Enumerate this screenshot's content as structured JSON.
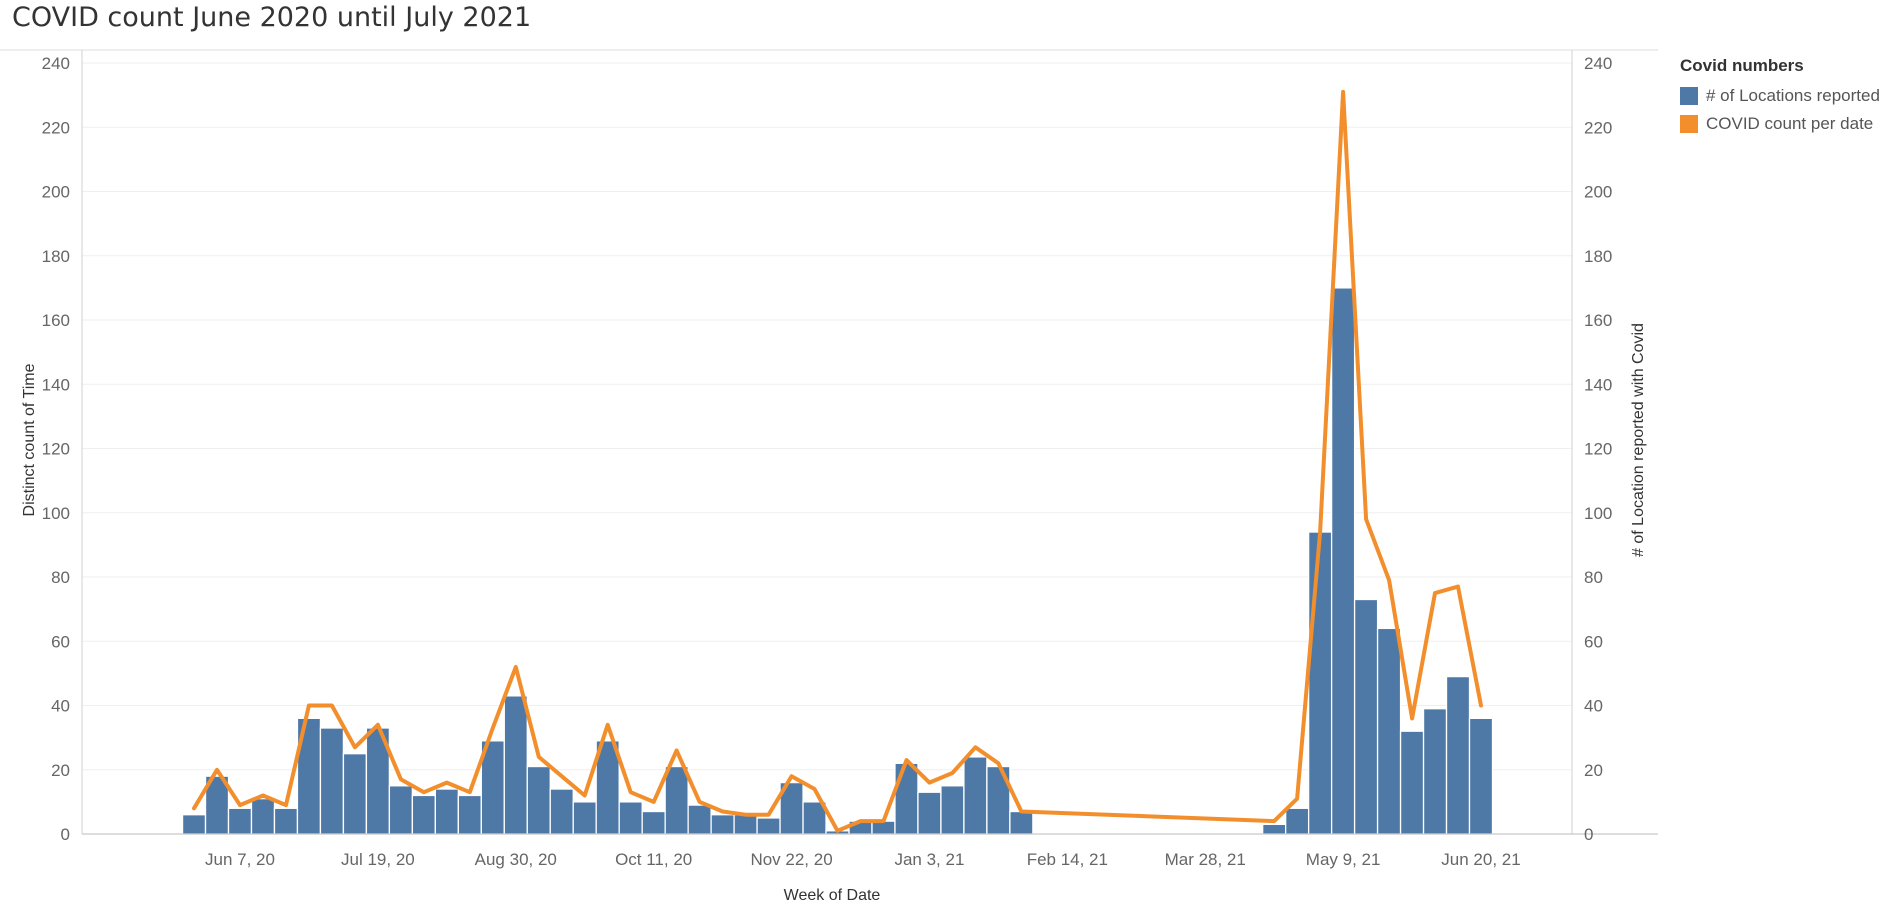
{
  "chart_data": {
    "type": "bar",
    "title": "COVID count June 2020 until July 2021",
    "xlabel": "Week of Date",
    "ylabel_left": "Distinct count of Time",
    "ylabel_right": "# of Location reported with Covid",
    "ylim": [
      0,
      240
    ],
    "yticks": [
      0,
      20,
      40,
      60,
      80,
      100,
      120,
      140,
      160,
      180,
      200,
      220,
      240
    ],
    "x_tick_labels": [
      "Jun 7, 20",
      "Jul 19, 20",
      "Aug 30, 20",
      "Oct 11, 20",
      "Nov 22, 20",
      "Jan 3, 21",
      "Feb 14, 21",
      "Mar 28, 21",
      "May 9, 21",
      "Jun 20, 21"
    ],
    "x_dates": [
      "2020-05-24",
      "2020-05-31",
      "2020-06-07",
      "2020-06-14",
      "2020-06-21",
      "2020-06-28",
      "2020-07-05",
      "2020-07-12",
      "2020-07-19",
      "2020-07-26",
      "2020-08-02",
      "2020-08-09",
      "2020-08-16",
      "2020-08-23",
      "2020-08-30",
      "2020-09-06",
      "2020-09-13",
      "2020-09-20",
      "2020-09-27",
      "2020-10-04",
      "2020-10-11",
      "2020-10-18",
      "2020-10-25",
      "2020-11-01",
      "2020-11-08",
      "2020-11-15",
      "2020-11-22",
      "2020-11-29",
      "2020-12-06",
      "2020-12-13",
      "2020-12-20",
      "2020-12-27",
      "2021-01-03",
      "2021-01-10",
      "2021-01-17",
      "2021-01-24",
      "2021-01-31",
      "2021-04-18",
      "2021-04-25",
      "2021-05-02",
      "2021-05-09",
      "2021-05-16",
      "2021-05-23",
      "2021-05-30",
      "2021-06-06",
      "2021-06-13",
      "2021-06-20"
    ],
    "legend": {
      "title": "Covid numbers",
      "position": "top-right"
    },
    "series": [
      {
        "name": "# of Locations reported",
        "type": "bar",
        "axis": "left",
        "color": "#4e79a7",
        "values": [
          6,
          18,
          8,
          11,
          8,
          36,
          33,
          25,
          33,
          15,
          12,
          14,
          12,
          29,
          43,
          21,
          14,
          10,
          29,
          10,
          7,
          21,
          9,
          6,
          6,
          5,
          16,
          10,
          1,
          4,
          4,
          22,
          13,
          15,
          24,
          21,
          7,
          3,
          8,
          94,
          170,
          73,
          64,
          32,
          39,
          49,
          36
        ]
      },
      {
        "name": "COVID count per date",
        "type": "line",
        "axis": "right",
        "color": "#f28e2b",
        "values": [
          8,
          20,
          9,
          12,
          9,
          40,
          40,
          27,
          34,
          17,
          13,
          16,
          13,
          33,
          52,
          24,
          18,
          12,
          34,
          13,
          10,
          26,
          10,
          7,
          6,
          6,
          18,
          14,
          1,
          4,
          4,
          23,
          16,
          19,
          27,
          22,
          7,
          4,
          11,
          94,
          231,
          98,
          79,
          36,
          75,
          77,
          40
        ]
      }
    ]
  }
}
